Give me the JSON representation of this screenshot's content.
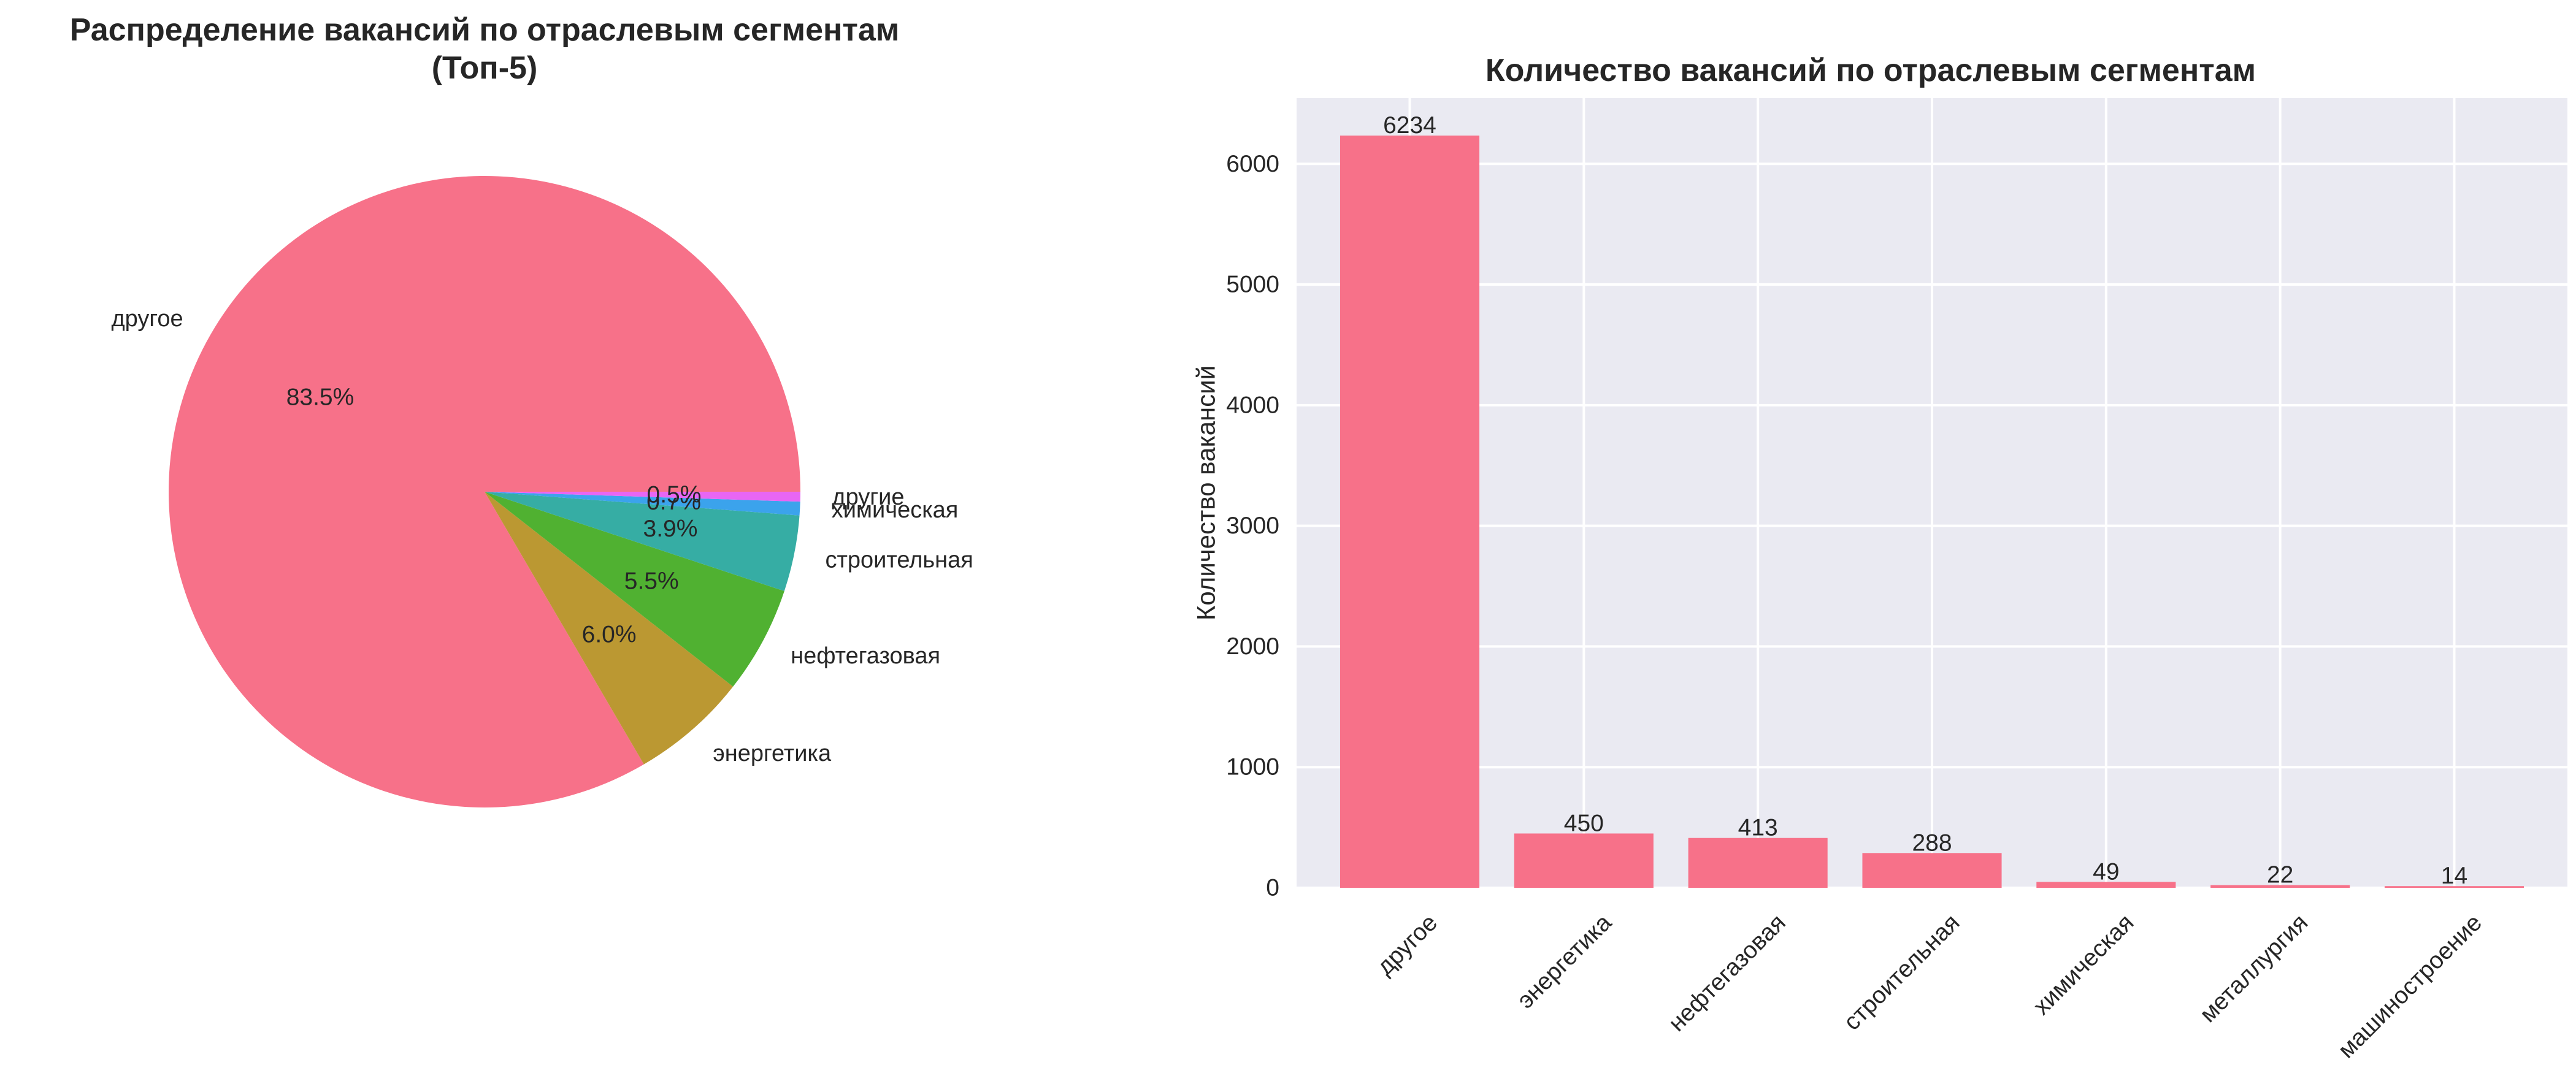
{
  "chart_data": [
    {
      "type": "pie",
      "title": "Распределение вакансий по отраслевым сегментам",
      "subtitle": "(Топ-5)",
      "categories": [
        "другое",
        "энергетика",
        "нефтегазовая",
        "строительная",
        "химическая",
        "другие"
      ],
      "values": [
        83.5,
        6.0,
        5.5,
        3.9,
        0.7,
        0.5
      ],
      "percent_labels": [
        "83.5%",
        "6.0%",
        "5.5%",
        "3.9%",
        "0.7%",
        "0.5%"
      ],
      "colors": [
        "#f77189",
        "#bb9832",
        "#50b131",
        "#36ada4",
        "#3ba3ec",
        "#e866f4"
      ]
    },
    {
      "type": "bar",
      "title": "Количество вакансий по отраслевым сегментам",
      "xlabel": "",
      "ylabel": "Количество вакансий",
      "categories": [
        "другое",
        "энергетика",
        "нефтегазовая",
        "строительная",
        "химическая",
        "металлургия",
        "машиностроение"
      ],
      "values": [
        6234,
        450,
        413,
        288,
        49,
        22,
        14
      ],
      "ylim": [
        0,
        6545
      ],
      "yticks": [
        0,
        1000,
        2000,
        3000,
        4000,
        5000,
        6000
      ],
      "grid": true,
      "bar_color": "#f77189",
      "background": "#eaeaf2"
    }
  ]
}
